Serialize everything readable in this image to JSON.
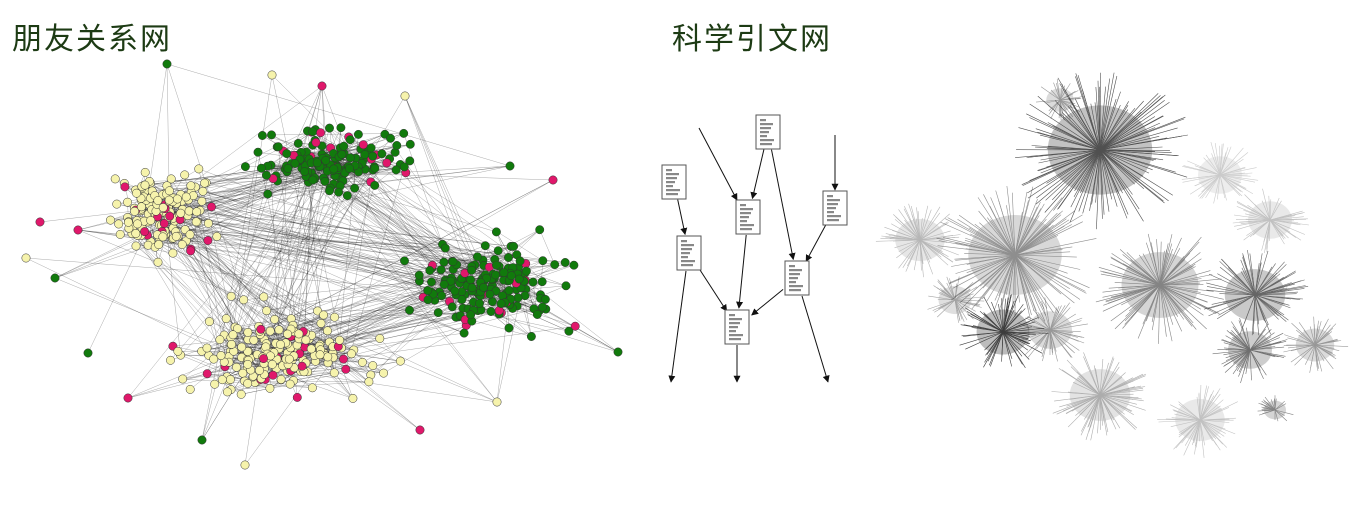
{
  "titles": {
    "left": "朋友关系网",
    "right": "科学引文网"
  },
  "friendship_network": {
    "communities": [
      {
        "color": "#f6f3ac"
      },
      {
        "color": "#f6f3ac"
      },
      {
        "color": "#117a0c"
      },
      {
        "color": "#117a0c"
      }
    ],
    "accent_color": "#e0186b",
    "edge_color": "#222222"
  },
  "citation_diagram": {
    "papers": [
      {
        "id": "p1"
      },
      {
        "id": "p2"
      },
      {
        "id": "p3"
      },
      {
        "id": "p4"
      },
      {
        "id": "p5"
      },
      {
        "id": "p6"
      },
      {
        "id": "p7"
      }
    ],
    "citations": [
      [
        "p1",
        "p3"
      ],
      [
        "p1",
        "p6"
      ],
      [
        "p2",
        "p5"
      ],
      [
        "p3",
        "p7"
      ],
      [
        "p4",
        "p6"
      ],
      [
        "p5",
        "p7"
      ],
      [
        "p6",
        "p7"
      ]
    ],
    "node_icon": "document-icon"
  },
  "citation_network_image": {
    "color": "#333333"
  }
}
